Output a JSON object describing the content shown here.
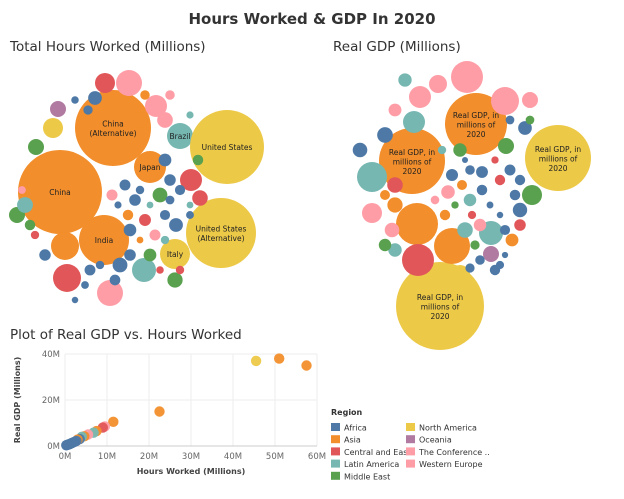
{
  "title": "Hours Worked & GDP In 2020",
  "colors": {
    "Africa": "#4e79a7",
    "Asia": "#f28e2b",
    "Central and Eas..": "#e15759",
    "Latin America": "#76b7b2",
    "Middle East": "#59a14f",
    "North America": "#edc948",
    "Oceania": "#b07aa1",
    "The Conference ..": "#ff9da7",
    "Western Europe": "#ff9da7"
  },
  "chart_data": [
    {
      "type": "bubble",
      "title": "Total Hours Worked (Millions)",
      "labels": [
        "China (Alternative)",
        "China",
        "India",
        "Japan",
        "Brazil",
        "United States",
        "United States (Alternative)",
        "Italy"
      ]
    },
    {
      "type": "bubble",
      "title": "Real GDP (Millions)",
      "labels": [
        "Real GDP, in millions of 2020 international",
        "Real GDP, in millions of 2020",
        "Real GDP, in millions of 2020 international",
        "Real GDP, in millions of 2020 international"
      ]
    },
    {
      "type": "scatter",
      "title": "Plot of Real GDP vs. Hours Worked",
      "xlabel": "Hours Worked (Millions)",
      "ylabel": "Real GDP (Millions)",
      "xlim": [
        0,
        60
      ],
      "ylim": [
        0,
        40
      ],
      "x_ticks": [
        "0M",
        "10M",
        "20M",
        "30M",
        "40M",
        "50M",
        "60M"
      ],
      "y_ticks": [
        "0M",
        "20M",
        "40M"
      ],
      "grid": true,
      "legend_title": "Region",
      "legend": [
        "Africa",
        "Asia",
        "Central and Eas..",
        "Latin America",
        "Middle East",
        "North America",
        "Oceania",
        "The Conference ..",
        "Western Europe"
      ],
      "points": [
        {
          "x": 45.5,
          "y": 37.0,
          "region": "North America"
        },
        {
          "x": 51.0,
          "y": 38.0,
          "region": "Asia"
        },
        {
          "x": 57.5,
          "y": 35.0,
          "region": "Asia"
        },
        {
          "x": 22.5,
          "y": 15.0,
          "region": "Asia"
        },
        {
          "x": 11.5,
          "y": 10.5,
          "region": "Asia"
        },
        {
          "x": 9.5,
          "y": 8.5,
          "region": "Western Europe"
        },
        {
          "x": 9.0,
          "y": 8.0,
          "region": "Central and Eas.."
        },
        {
          "x": 7.5,
          "y": 6.5,
          "region": "Asia"
        },
        {
          "x": 6.8,
          "y": 5.8,
          "region": "Latin America"
        },
        {
          "x": 5.5,
          "y": 5.0,
          "region": "Western Europe"
        },
        {
          "x": 4.6,
          "y": 4.2,
          "region": "Asia"
        },
        {
          "x": 4.0,
          "y": 4.0,
          "region": "Latin America"
        },
        {
          "x": 3.5,
          "y": 3.0,
          "region": "Africa"
        },
        {
          "x": 3.0,
          "y": 2.8,
          "region": "Asia"
        },
        {
          "x": 2.7,
          "y": 2.2,
          "region": "Africa"
        },
        {
          "x": 2.3,
          "y": 1.8,
          "region": "Africa"
        },
        {
          "x": 2.0,
          "y": 1.6,
          "region": "Africa"
        },
        {
          "x": 1.7,
          "y": 1.3,
          "region": "Africa"
        },
        {
          "x": 1.5,
          "y": 1.2,
          "region": "Africa"
        },
        {
          "x": 1.2,
          "y": 0.9,
          "region": "Africa"
        },
        {
          "x": 1.0,
          "y": 0.8,
          "region": "Africa"
        },
        {
          "x": 0.8,
          "y": 0.6,
          "region": "Africa"
        },
        {
          "x": 0.6,
          "y": 0.5,
          "region": "Africa"
        },
        {
          "x": 0.4,
          "y": 0.4,
          "region": "Africa"
        },
        {
          "x": 0.3,
          "y": 0.3,
          "region": "Africa"
        }
      ]
    }
  ]
}
